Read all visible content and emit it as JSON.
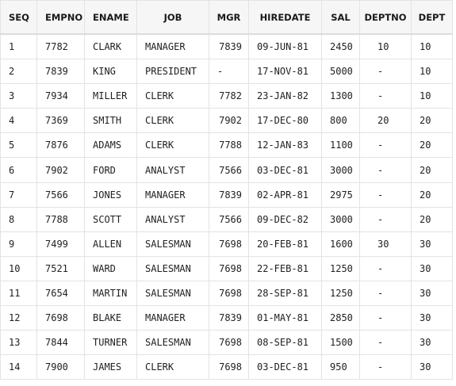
{
  "table": {
    "columns": [
      "SEQ",
      "EMPNO",
      "ENAME",
      "JOB",
      "MGR",
      "HIREDATE",
      "SAL",
      "DEPTNO",
      "DEPT"
    ],
    "rows": [
      [
        "1",
        "7782",
        "CLARK",
        "MANAGER",
        "7839",
        "09-JUN-81",
        "2450",
        "10",
        "10"
      ],
      [
        "2",
        "7839",
        "KING",
        "PRESIDENT",
        "-",
        "17-NOV-81",
        "5000",
        "-",
        "10"
      ],
      [
        "3",
        "7934",
        "MILLER",
        "CLERK",
        "7782",
        "23-JAN-82",
        "1300",
        "-",
        "10"
      ],
      [
        "4",
        "7369",
        "SMITH",
        "CLERK",
        "7902",
        "17-DEC-80",
        "800",
        "20",
        "20"
      ],
      [
        "5",
        "7876",
        "ADAMS",
        "CLERK",
        "7788",
        "12-JAN-83",
        "1100",
        "-",
        "20"
      ],
      [
        "6",
        "7902",
        "FORD",
        "ANALYST",
        "7566",
        "03-DEC-81",
        "3000",
        "-",
        "20"
      ],
      [
        "7",
        "7566",
        "JONES",
        "MANAGER",
        "7839",
        "02-APR-81",
        "2975",
        "-",
        "20"
      ],
      [
        "8",
        "7788",
        "SCOTT",
        "ANALYST",
        "7566",
        "09-DEC-82",
        "3000",
        "-",
        "20"
      ],
      [
        "9",
        "7499",
        "ALLEN",
        "SALESMAN",
        "7698",
        "20-FEB-81",
        "1600",
        "30",
        "30"
      ],
      [
        "10",
        "7521",
        "WARD",
        "SALESMAN",
        "7698",
        "22-FEB-81",
        "1250",
        "-",
        "30"
      ],
      [
        "11",
        "7654",
        "MARTIN",
        "SALESMAN",
        "7698",
        "28-SEP-81",
        "1250",
        "-",
        "30"
      ],
      [
        "12",
        "7698",
        "BLAKE",
        "MANAGER",
        "7839",
        "01-MAY-81",
        "2850",
        "-",
        "30"
      ],
      [
        "13",
        "7844",
        "TURNER",
        "SALESMAN",
        "7698",
        "08-SEP-81",
        "1500",
        "-",
        "30"
      ],
      [
        "14",
        "7900",
        "JAMES",
        "CLERK",
        "7698",
        "03-DEC-81",
        "950",
        "-",
        "30"
      ]
    ]
  },
  "colors": {
    "border": "#e3e3e3",
    "header_bg": "#f6f6f6",
    "text": "#1f1f1f"
  }
}
